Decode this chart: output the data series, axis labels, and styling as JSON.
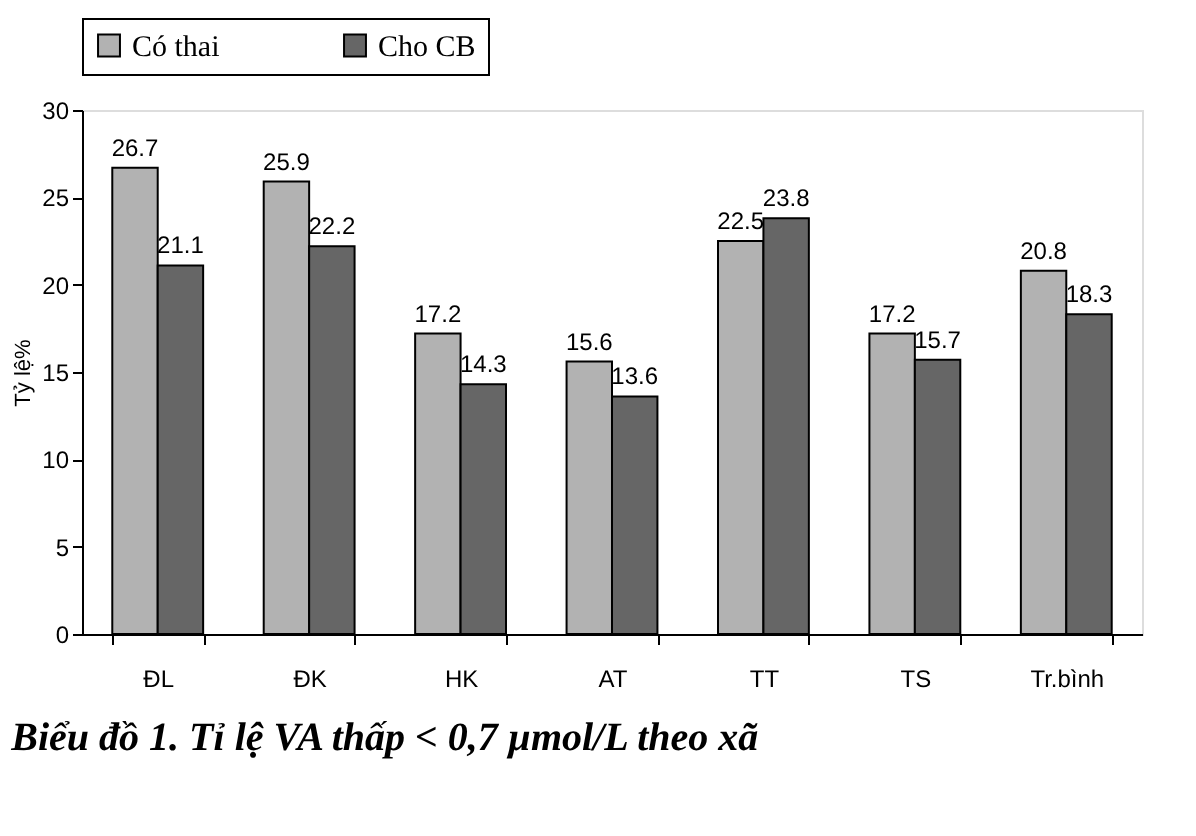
{
  "chart_data": {
    "type": "bar",
    "title": "Biểu đồ 1. Tỉ lệ VA thấp < 0,7 µmol/L theo xã",
    "ylabel": "Tỷ lệ%",
    "categories": [
      "ĐL",
      "ĐK",
      "HK",
      "AT",
      "TT",
      "TS",
      "Tr.bình"
    ],
    "series": [
      {
        "name": "Có thai",
        "color": "#b2b2b2",
        "values": [
          26.7,
          25.9,
          17.2,
          15.6,
          22.5,
          17.2,
          20.8
        ]
      },
      {
        "name": "Cho CB",
        "color": "#666666",
        "values": [
          21.1,
          22.2,
          14.3,
          13.6,
          23.8,
          15.7,
          18.3
        ]
      }
    ],
    "ylim": [
      0,
      30
    ],
    "yticks": [
      0,
      5,
      10,
      15,
      20,
      25,
      30
    ],
    "grid": false,
    "legend": "top",
    "data_labels": true
  }
}
